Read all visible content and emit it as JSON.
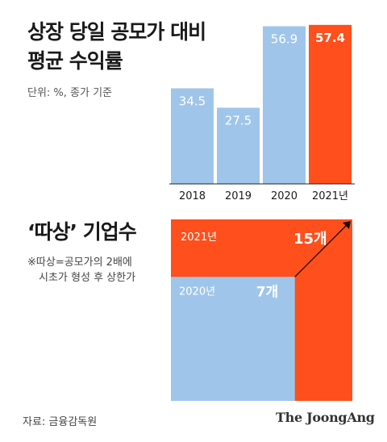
{
  "top_chart": {
    "title_line1": "상장 당일 공모가 대비",
    "title_line2": "평균 수익률",
    "unit": "단위: %, 종가 기준"
  },
  "bottom_chart": {
    "title": "‘따상’ 기업수",
    "note_line1": "※따상=공모가의 2배에",
    "note_line2": "시초가 형성 후 상한가"
  },
  "footer": {
    "source": "자료: 금융감독원",
    "brand": "The JoongAng"
  },
  "colors": {
    "light_blue": "#9fc5ea",
    "orange": "#ff4f1c",
    "text": "#1a1a1a"
  },
  "chart_data": [
    {
      "type": "bar",
      "title": "상장 당일 공모가 대비 평균 수익률",
      "categories": [
        "2018",
        "2019",
        "2020",
        "2021년"
      ],
      "values": [
        34.5,
        27.5,
        56.9,
        57.4
      ],
      "value_labels": [
        "34.5",
        "27.5",
        "56.9",
        "57.4"
      ],
      "highlight_index": 3,
      "ylabel": "",
      "grid": false
    },
    {
      "type": "area",
      "title": "‘따상’ 기업수",
      "series": [
        {
          "name": "2021년",
          "value": 15,
          "label": "15개"
        },
        {
          "name": "2020년",
          "value": 7,
          "label": "7개"
        }
      ]
    }
  ]
}
